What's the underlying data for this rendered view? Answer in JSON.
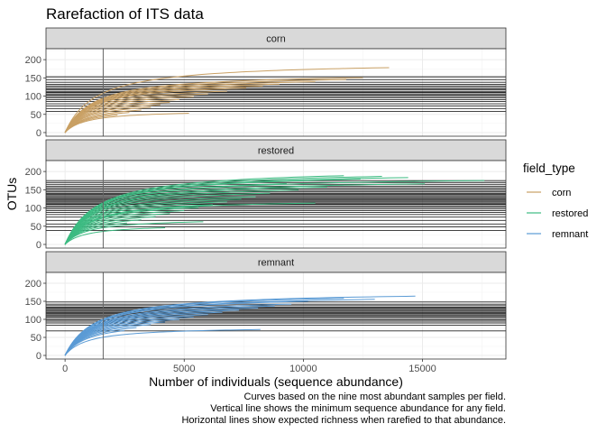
{
  "chart_data": {
    "type": "line",
    "title": "Rarefaction of ITS data",
    "xlabel": "Number of individuals (sequence abundance)",
    "ylabel": "OTUs",
    "xlim": [
      -800,
      18500
    ],
    "xticks": [
      0,
      5000,
      10000,
      15000
    ],
    "xtick_labels": [
      "0",
      "5000",
      "10000",
      "15000"
    ],
    "grid": true,
    "facet_variable": "field_type",
    "vline_x": 1600,
    "panels": [
      {
        "name": "corn",
        "color": "#C9A064",
        "ylim": [
          -10,
          230
        ],
        "yticks": [
          0,
          50,
          100,
          150,
          200
        ],
        "ytick_labels": [
          "0",
          "50",
          "100",
          "150",
          "200"
        ],
        "curves": [
          {
            "max_x": 13600,
            "asymptote": 195
          },
          {
            "max_x": 12500,
            "asymptote": 165
          },
          {
            "max_x": 11800,
            "asymptote": 160
          },
          {
            "max_x": 10500,
            "asymptote": 155
          },
          {
            "max_x": 9000,
            "asymptote": 150
          },
          {
            "max_x": 8300,
            "asymptote": 145
          },
          {
            "max_x": 7600,
            "asymptote": 140
          },
          {
            "max_x": 6800,
            "asymptote": 132
          },
          {
            "max_x": 6000,
            "asymptote": 125
          },
          {
            "max_x": 5400,
            "asymptote": 118
          },
          {
            "max_x": 4800,
            "asymptote": 110
          },
          {
            "max_x": 4400,
            "asymptote": 102
          },
          {
            "max_x": 4000,
            "asymptote": 95
          },
          {
            "max_x": 3600,
            "asymptote": 88
          },
          {
            "max_x": 3200,
            "asymptote": 80
          },
          {
            "max_x": 2700,
            "asymptote": 74
          },
          {
            "max_x": 2200,
            "asymptote": 68
          },
          {
            "max_x": 5200,
            "asymptote": 62
          }
        ],
        "hlines": [
          153,
          145,
          138,
          132,
          128,
          124,
          120,
          117,
          113,
          110,
          106,
          103,
          99,
          95,
          90,
          85,
          79,
          73,
          66,
          58
        ]
      },
      {
        "name": "restored",
        "color": "#3DBB82",
        "ylim": [
          -10,
          230
        ],
        "yticks": [
          0,
          50,
          100,
          150,
          200
        ],
        "ytick_labels": [
          "0",
          "50",
          "100",
          "150",
          "200"
        ],
        "curves": [
          {
            "max_x": 17600,
            "asymptote": 188
          },
          {
            "max_x": 15100,
            "asymptote": 180
          },
          {
            "max_x": 14400,
            "asymptote": 200
          },
          {
            "max_x": 13300,
            "asymptote": 205
          },
          {
            "max_x": 12400,
            "asymptote": 198
          },
          {
            "max_x": 11700,
            "asymptote": 210
          },
          {
            "max_x": 11000,
            "asymptote": 175
          },
          {
            "max_x": 10500,
            "asymptote": 125
          },
          {
            "max_x": 9800,
            "asymptote": 168
          },
          {
            "max_x": 9300,
            "asymptote": 190
          },
          {
            "max_x": 8600,
            "asymptote": 160
          },
          {
            "max_x": 8000,
            "asymptote": 150
          },
          {
            "max_x": 7400,
            "asymptote": 143
          },
          {
            "max_x": 6800,
            "asymptote": 136
          },
          {
            "max_x": 6200,
            "asymptote": 128
          },
          {
            "max_x": 5600,
            "asymptote": 120
          },
          {
            "max_x": 5000,
            "asymptote": 112
          },
          {
            "max_x": 4400,
            "asymptote": 104
          },
          {
            "max_x": 3800,
            "asymptote": 96
          },
          {
            "max_x": 3200,
            "asymptote": 88
          },
          {
            "max_x": 2600,
            "asymptote": 80
          },
          {
            "max_x": 5800,
            "asymptote": 72
          },
          {
            "max_x": 4200,
            "asymptote": 55
          }
        ],
        "hlines": [
          175,
          170,
          165,
          160,
          156,
          152,
          148,
          144,
          140,
          137,
          134,
          131,
          128,
          125,
          122,
          119,
          116,
          113,
          110,
          106,
          102,
          98,
          93,
          88,
          82,
          75,
          66,
          56,
          48,
          38
        ]
      },
      {
        "name": "remnant",
        "color": "#5B9BD5",
        "ylim": [
          -10,
          230
        ],
        "yticks": [
          0,
          50,
          100,
          150,
          200
        ],
        "ytick_labels": [
          "0",
          "50",
          "100",
          "150",
          "200"
        ],
        "curves": [
          {
            "max_x": 14700,
            "asymptote": 178
          },
          {
            "max_x": 13000,
            "asymptote": 170
          },
          {
            "max_x": 11700,
            "asymptote": 175
          },
          {
            "max_x": 10200,
            "asymptote": 168
          },
          {
            "max_x": 9500,
            "asymptote": 160
          },
          {
            "max_x": 8800,
            "asymptote": 155
          },
          {
            "max_x": 8100,
            "asymptote": 150
          },
          {
            "max_x": 7300,
            "asymptote": 145
          },
          {
            "max_x": 6600,
            "asymptote": 140
          },
          {
            "max_x": 6000,
            "asymptote": 134
          },
          {
            "max_x": 5400,
            "asymptote": 128
          },
          {
            "max_x": 4800,
            "asymptote": 122
          },
          {
            "max_x": 4200,
            "asymptote": 116
          },
          {
            "max_x": 3600,
            "asymptote": 110
          },
          {
            "max_x": 3000,
            "asymptote": 103
          },
          {
            "max_x": 2500,
            "asymptote": 96
          },
          {
            "max_x": 8200,
            "asymptote": 80
          }
        ],
        "hlines": [
          148,
          142,
          138,
          134,
          131,
          128,
          125,
          122,
          119,
          116,
          113,
          110,
          107,
          103,
          99,
          95,
          90,
          84,
          68
        ]
      }
    ],
    "legend": {
      "title": "field_type",
      "position": "right",
      "entries": [
        {
          "label": "corn",
          "color": "#C9A064"
        },
        {
          "label": "restored",
          "color": "#3DBB82"
        },
        {
          "label": "remnant",
          "color": "#5B9BD5"
        }
      ]
    },
    "caption": [
      "Curves based on the nine most abundant samples per field.",
      "Vertical line shows the minimum sequence abundance for any field.",
      "Horizontal lines show expected richness when rarefied to that abundance."
    ]
  }
}
